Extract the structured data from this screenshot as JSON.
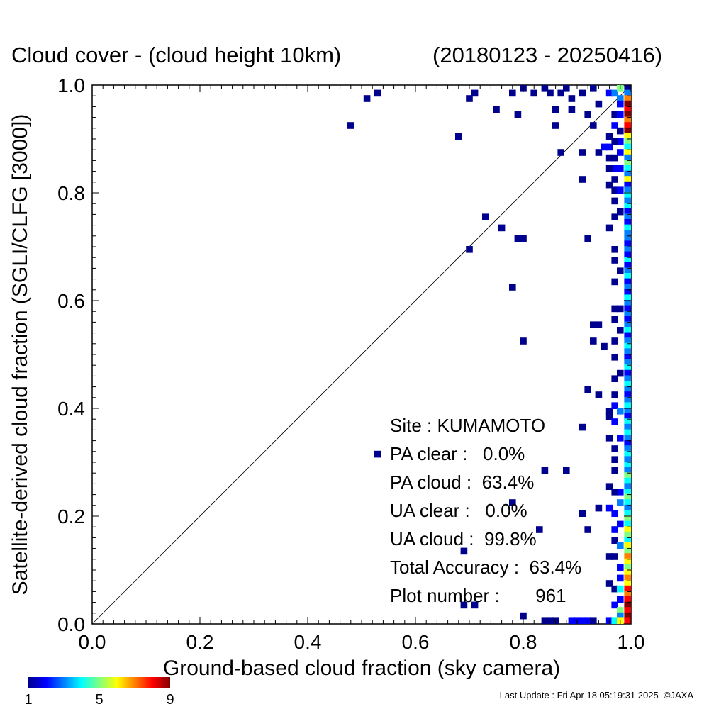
{
  "chart_data": {
    "type": "heatmap",
    "title": "Cloud cover - (cloud height 10km)",
    "date_range": "(20180123 - 20250416)",
    "xlabel": "Ground-based cloud fraction (sky camera)",
    "ylabel": "Satellite-derived cloud fraction (SGLI/CLFG [3000])",
    "xlim": [
      0.0,
      1.0
    ],
    "ylim": [
      0.0,
      1.0
    ],
    "x_ticks": [
      "0.0",
      "0.2",
      "0.4",
      "0.6",
      "0.8",
      "1.0"
    ],
    "y_ticks": [
      "0.0",
      "0.2",
      "0.4",
      "0.6",
      "0.8",
      "1.0"
    ],
    "diagonal_line": true,
    "grid": false,
    "colorbar": {
      "min_label": "1",
      "mid_label": "5",
      "max_label": "9",
      "range": [
        1,
        9
      ],
      "placement": "bottom-left"
    },
    "stats": {
      "site": "Site : KUMAMOTO",
      "pa_clear": "PA clear :   0.0%",
      "pa_cloud": "PA cloud :  63.4%",
      "ua_clear": "UA clear :   0.0%",
      "ua_cloud": "UA cloud :  99.8%",
      "total_accuracy": "Total Accuracy :  63.4%",
      "plot_number": "Plot number :       961"
    },
    "points": [
      [
        0.53,
        0.985,
        1
      ],
      [
        0.51,
        0.975,
        1
      ],
      [
        0.48,
        0.925,
        1
      ],
      [
        0.68,
        0.905,
        1
      ],
      [
        0.7,
        0.975,
        1
      ],
      [
        0.71,
        0.985,
        1
      ],
      [
        0.75,
        0.955,
        1
      ],
      [
        0.79,
        0.945,
        1
      ],
      [
        0.78,
        0.985,
        1
      ],
      [
        0.8,
        0.995,
        1
      ],
      [
        0.82,
        0.985,
        1
      ],
      [
        0.84,
        0.995,
        1
      ],
      [
        0.85,
        0.985,
        1
      ],
      [
        0.87,
        0.985,
        1
      ],
      [
        0.88,
        0.995,
        1
      ],
      [
        0.89,
        0.975,
        1
      ],
      [
        0.91,
        0.985,
        1
      ],
      [
        0.93,
        0.995,
        1
      ],
      [
        0.86,
        0.955,
        1
      ],
      [
        0.89,
        0.955,
        1
      ],
      [
        0.86,
        0.925,
        1
      ],
      [
        0.92,
        0.945,
        1
      ],
      [
        0.93,
        0.925,
        1
      ],
      [
        0.94,
        0.965,
        1
      ],
      [
        0.87,
        0.875,
        1
      ],
      [
        0.91,
        0.875,
        1
      ],
      [
        0.94,
        0.875,
        1
      ],
      [
        0.95,
        0.885,
        2
      ],
      [
        0.96,
        0.885,
        2
      ],
      [
        0.96,
        0.865,
        1
      ],
      [
        0.97,
        0.845,
        2
      ],
      [
        0.97,
        0.825,
        1
      ],
      [
        0.91,
        0.825,
        1
      ],
      [
        0.96,
        0.815,
        1
      ],
      [
        0.97,
        0.805,
        1
      ],
      [
        0.97,
        0.755,
        1
      ],
      [
        0.73,
        0.755,
        1
      ],
      [
        0.76,
        0.735,
        1
      ],
      [
        0.79,
        0.715,
        1
      ],
      [
        0.8,
        0.715,
        1
      ],
      [
        0.92,
        0.715,
        1
      ],
      [
        0.7,
        0.695,
        1
      ],
      [
        0.78,
        0.625,
        1
      ],
      [
        0.8,
        0.525,
        1
      ],
      [
        0.93,
        0.555,
        1
      ],
      [
        0.94,
        0.555,
        1
      ],
      [
        0.93,
        0.525,
        1
      ],
      [
        0.95,
        0.515,
        1
      ],
      [
        0.92,
        0.435,
        1
      ],
      [
        0.94,
        0.425,
        1
      ],
      [
        0.96,
        0.395,
        1
      ],
      [
        0.96,
        0.385,
        1
      ],
      [
        0.96,
        0.345,
        1
      ],
      [
        0.53,
        0.315,
        1
      ],
      [
        0.91,
        0.365,
        1
      ],
      [
        0.96,
        0.255,
        1
      ],
      [
        0.84,
        0.285,
        1
      ],
      [
        0.88,
        0.285,
        1
      ],
      [
        0.78,
        0.225,
        1
      ],
      [
        0.91,
        0.205,
        1
      ],
      [
        0.94,
        0.215,
        1
      ],
      [
        0.83,
        0.175,
        1
      ],
      [
        0.92,
        0.175,
        1
      ],
      [
        0.69,
        0.135,
        1
      ],
      [
        0.69,
        0.035,
        1
      ],
      [
        0.71,
        0.035,
        1
      ],
      [
        0.8,
        0.015,
        1
      ],
      [
        0.84,
        0.005,
        1
      ],
      [
        0.85,
        0.005,
        1
      ],
      [
        0.86,
        0.005,
        1
      ],
      [
        0.89,
        0.005,
        2
      ],
      [
        0.9,
        0.005,
        2
      ],
      [
        0.91,
        0.005,
        2
      ],
      [
        0.92,
        0.005,
        2
      ],
      [
        0.93,
        0.005,
        1
      ],
      [
        0.96,
        0.005,
        2
      ],
      [
        0.97,
        0.005,
        4
      ],
      [
        0.97,
        0.035,
        2
      ],
      [
        0.97,
        0.065,
        1
      ],
      [
        0.96,
        0.075,
        1
      ],
      [
        0.97,
        0.125,
        1
      ],
      [
        0.96,
        0.125,
        1
      ],
      [
        0.97,
        0.155,
        1
      ],
      [
        0.97,
        0.175,
        2
      ],
      [
        0.97,
        0.205,
        2
      ],
      [
        0.96,
        0.215,
        2
      ],
      [
        0.97,
        0.285,
        1
      ],
      [
        0.97,
        0.325,
        1
      ],
      [
        0.97,
        0.375,
        2
      ],
      [
        0.97,
        0.405,
        2
      ],
      [
        0.97,
        0.455,
        1
      ],
      [
        0.97,
        0.525,
        1
      ],
      [
        0.97,
        0.565,
        1
      ],
      [
        0.97,
        0.635,
        1
      ],
      [
        0.97,
        0.695,
        1
      ],
      [
        0.96,
        0.735,
        1
      ],
      [
        0.97,
        0.925,
        2
      ],
      [
        0.97,
        0.945,
        1
      ],
      [
        0.96,
        0.985,
        2
      ],
      [
        0.97,
        0.985,
        3
      ],
      [
        0.98,
        0.995,
        5
      ],
      [
        0.98,
        0.975,
        3
      ],
      [
        0.98,
        0.965,
        2
      ],
      [
        0.98,
        0.945,
        2
      ],
      [
        0.98,
        0.915,
        1
      ],
      [
        0.98,
        0.895,
        2
      ],
      [
        0.98,
        0.875,
        2
      ],
      [
        0.98,
        0.845,
        2
      ],
      [
        0.98,
        0.805,
        2
      ],
      [
        0.98,
        0.765,
        1
      ],
      [
        0.98,
        0.655,
        1
      ],
      [
        0.98,
        0.585,
        1
      ],
      [
        0.98,
        0.545,
        1
      ],
      [
        0.98,
        0.465,
        1
      ],
      [
        0.98,
        0.395,
        3
      ],
      [
        0.98,
        0.345,
        2
      ],
      [
        0.98,
        0.245,
        2
      ],
      [
        0.98,
        0.225,
        3
      ],
      [
        0.98,
        0.185,
        2
      ],
      [
        0.98,
        0.145,
        3
      ],
      [
        0.98,
        0.105,
        2
      ],
      [
        0.98,
        0.085,
        2
      ],
      [
        0.98,
        0.065,
        4
      ],
      [
        0.98,
        0.045,
        2
      ],
      [
        0.98,
        0.025,
        5
      ],
      [
        0.98,
        0.015,
        3
      ],
      [
        0.98,
        0.005,
        6
      ],
      [
        0.97,
        0.245,
        1
      ],
      [
        0.97,
        0.305,
        1
      ],
      [
        0.97,
        0.425,
        1
      ],
      [
        0.97,
        0.495,
        1
      ],
      [
        0.97,
        0.585,
        1
      ],
      [
        0.97,
        0.675,
        1
      ],
      [
        0.97,
        0.785,
        1
      ],
      [
        0.97,
        0.865,
        1
      ],
      [
        0.97,
        0.895,
        1
      ],
      [
        0.96,
        0.905,
        1
      ],
      [
        0.96,
        0.845,
        1
      ]
    ],
    "right_column": [
      [
        0.995,
        1
      ],
      [
        0.985,
        3
      ],
      [
        0.975,
        7
      ],
      [
        0.965,
        9
      ],
      [
        0.955,
        8
      ],
      [
        0.945,
        9
      ],
      [
        0.935,
        7
      ],
      [
        0.925,
        8
      ],
      [
        0.915,
        9
      ],
      [
        0.905,
        6
      ],
      [
        0.895,
        5
      ],
      [
        0.885,
        4
      ],
      [
        0.875,
        6
      ],
      [
        0.865,
        3
      ],
      [
        0.855,
        5
      ],
      [
        0.845,
        4
      ],
      [
        0.835,
        3
      ],
      [
        0.825,
        6
      ],
      [
        0.815,
        2
      ],
      [
        0.805,
        3
      ],
      [
        0.795,
        4
      ],
      [
        0.785,
        3
      ],
      [
        0.775,
        4
      ],
      [
        0.765,
        2
      ],
      [
        0.755,
        3
      ],
      [
        0.745,
        2
      ],
      [
        0.735,
        4
      ],
      [
        0.725,
        3
      ],
      [
        0.715,
        3
      ],
      [
        0.705,
        2
      ],
      [
        0.695,
        3
      ],
      [
        0.685,
        2
      ],
      [
        0.675,
        4
      ],
      [
        0.665,
        2
      ],
      [
        0.655,
        3
      ],
      [
        0.645,
        4
      ],
      [
        0.635,
        2
      ],
      [
        0.625,
        3
      ],
      [
        0.615,
        2
      ],
      [
        0.605,
        4
      ],
      [
        0.595,
        3
      ],
      [
        0.585,
        2
      ],
      [
        0.575,
        3
      ],
      [
        0.565,
        2
      ],
      [
        0.555,
        3
      ],
      [
        0.545,
        4
      ],
      [
        0.535,
        2
      ],
      [
        0.525,
        3
      ],
      [
        0.515,
        4
      ],
      [
        0.505,
        3
      ],
      [
        0.495,
        2
      ],
      [
        0.485,
        3
      ],
      [
        0.475,
        4
      ],
      [
        0.465,
        2
      ],
      [
        0.455,
        3
      ],
      [
        0.445,
        4
      ],
      [
        0.435,
        3
      ],
      [
        0.425,
        2
      ],
      [
        0.415,
        3
      ],
      [
        0.405,
        4
      ],
      [
        0.395,
        3
      ],
      [
        0.385,
        2
      ],
      [
        0.375,
        4
      ],
      [
        0.365,
        3
      ],
      [
        0.355,
        4
      ],
      [
        0.345,
        3
      ],
      [
        0.335,
        2
      ],
      [
        0.325,
        3
      ],
      [
        0.315,
        4
      ],
      [
        0.305,
        3
      ],
      [
        0.295,
        4
      ],
      [
        0.285,
        3
      ],
      [
        0.275,
        5
      ],
      [
        0.265,
        4
      ],
      [
        0.255,
        3
      ],
      [
        0.245,
        4
      ],
      [
        0.235,
        5
      ],
      [
        0.225,
        4
      ],
      [
        0.215,
        3
      ],
      [
        0.205,
        4
      ],
      [
        0.195,
        5
      ],
      [
        0.185,
        4
      ],
      [
        0.175,
        6
      ],
      [
        0.165,
        5
      ],
      [
        0.155,
        4
      ],
      [
        0.145,
        6
      ],
      [
        0.135,
        5
      ],
      [
        0.125,
        7
      ],
      [
        0.115,
        6
      ],
      [
        0.105,
        5
      ],
      [
        0.095,
        6
      ],
      [
        0.085,
        7
      ],
      [
        0.075,
        6
      ],
      [
        0.065,
        8
      ],
      [
        0.055,
        7
      ],
      [
        0.045,
        8
      ],
      [
        0.035,
        9
      ],
      [
        0.025,
        8
      ],
      [
        0.015,
        9
      ],
      [
        0.005,
        8
      ]
    ]
  },
  "footer": {
    "last_update": "Last Update : Fri Apr 18 05:19:31 2025  ©JAXA"
  }
}
